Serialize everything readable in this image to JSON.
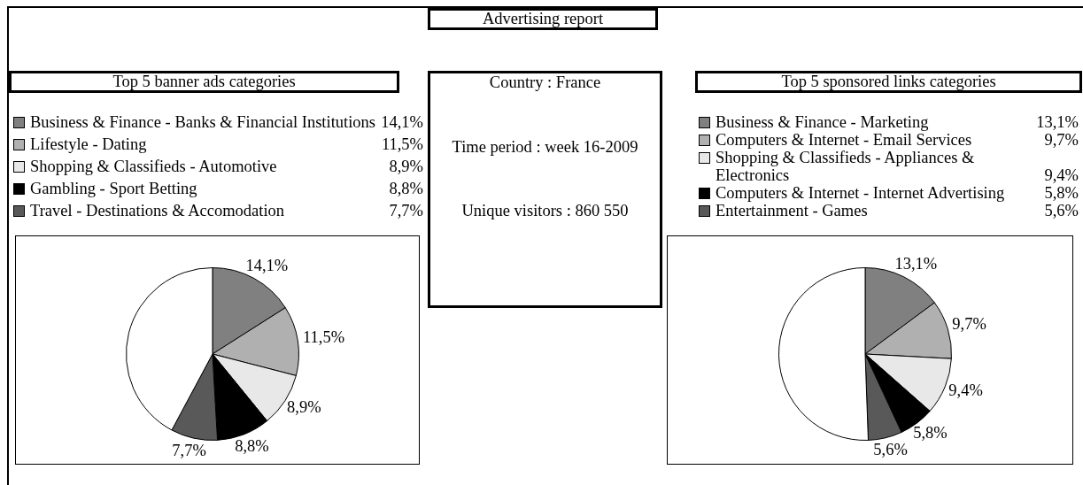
{
  "chart_data": [
    {
      "type": "other",
      "title": "Advertising report",
      "annotations": [
        "Country : France",
        "Time period : week 16-2009",
        "Unique visitors : 860 550"
      ]
    },
    {
      "type": "pie",
      "title": "Top 5 banner ads categories",
      "categories": [
        "Business & Finance - Banks & Financial Institutions",
        "Lifestyle - Dating",
        "Shopping & Classifieds - Automotive",
        "Gambling - Sport Betting",
        "Travel - Destinations & Accomodation",
        null
      ],
      "values": [
        14.1,
        11.5,
        8.9,
        8.8,
        7.7,
        37.2
      ],
      "colors": [
        "#808080",
        "#b0b0b0",
        "#e8e8e8",
        "#000000",
        "#595959",
        "#ffffff"
      ],
      "value_labels": [
        "14,1%",
        "11,5%",
        "8,9%",
        "8,8%",
        "7,7%",
        null
      ],
      "legend": "top"
    },
    {
      "type": "pie",
      "title": "Top 5 sponsored links categories",
      "categories": [
        "Business & Finance - Marketing",
        "Computers & Internet - Email Services",
        "Shopping & Classifieds - Appliances & Electronics",
        "Computers & Internet - Internet Advertising",
        "Entertainment - Games",
        null
      ],
      "values": [
        13.1,
        9.7,
        9.4,
        5.8,
        5.6,
        44.6
      ],
      "colors": [
        "#808080",
        "#b0b0b0",
        "#e8e8e8",
        "#000000",
        "#595959",
        "#ffffff"
      ],
      "value_labels": [
        "13,1%",
        "9,7%",
        "9,4%",
        "5,8%",
        "5,6%",
        null
      ],
      "legend": "top"
    }
  ]
}
